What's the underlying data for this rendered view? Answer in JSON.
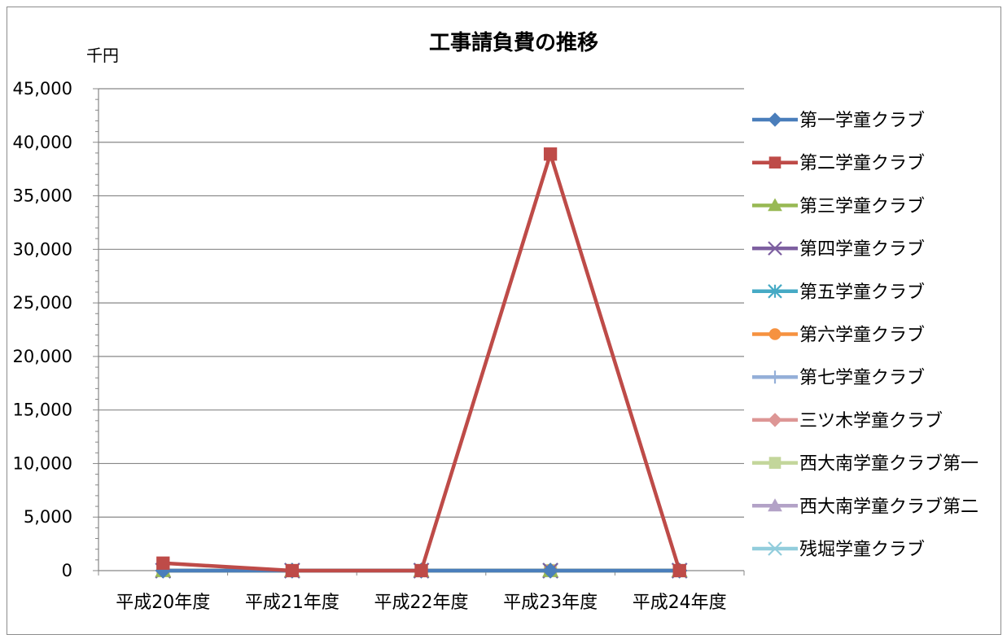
{
  "chart_data": {
    "type": "line",
    "title": "工事請負費の推移",
    "ylabel": "千円",
    "xlabel": "",
    "ylim": [
      0,
      45000
    ],
    "yticks": [
      0,
      5000,
      10000,
      15000,
      20000,
      25000,
      30000,
      35000,
      40000,
      45000
    ],
    "ytick_labels": [
      "0",
      "5,000",
      "10,000",
      "15,000",
      "20,000",
      "25,000",
      "30,000",
      "35,000",
      "40,000",
      "45,000"
    ],
    "categories": [
      "平成20年度",
      "平成21年度",
      "平成22年度",
      "平成23年度",
      "平成24年度"
    ],
    "grid": true,
    "legend_position": "right",
    "series": [
      {
        "name": "第一学童クラブ",
        "color": "#4a7ebb",
        "marker": "diamond",
        "values": [
          0,
          0,
          0,
          0,
          0
        ]
      },
      {
        "name": "第二学童クラブ",
        "color": "#be4b48",
        "marker": "square",
        "values": [
          700,
          0,
          0,
          38900,
          0
        ]
      },
      {
        "name": "第三学童クラブ",
        "color": "#98b954",
        "marker": "triangle",
        "values": [
          0,
          0,
          0,
          0,
          0
        ]
      },
      {
        "name": "第四学童クラブ",
        "color": "#7d5fa0",
        "marker": "x",
        "values": [
          0,
          0,
          0,
          0,
          0
        ]
      },
      {
        "name": "第五学童クラブ",
        "color": "#46aac5",
        "marker": "star",
        "values": [
          0,
          0,
          0,
          0,
          0
        ]
      },
      {
        "name": "第六学童クラブ",
        "color": "#f69240",
        "marker": "circle",
        "values": [
          0,
          0,
          0,
          0,
          0
        ]
      },
      {
        "name": "第七学童クラブ",
        "color": "#94afd8",
        "marker": "plus",
        "values": [
          0,
          0,
          0,
          0,
          0
        ]
      },
      {
        "name": "三ツ木学童クラブ",
        "color": "#dd9695",
        "marker": "diamond",
        "values": [
          0,
          0,
          0,
          0,
          0
        ]
      },
      {
        "name": "西大南学童クラブ第一",
        "color": "#c3d69b",
        "marker": "square",
        "values": [
          0,
          0,
          0,
          0,
          0
        ]
      },
      {
        "name": "西大南学童クラブ第二",
        "color": "#b3a2c7",
        "marker": "triangle",
        "values": [
          0,
          0,
          0,
          0,
          0
        ]
      },
      {
        "name": "残堀学童クラブ",
        "color": "#92cddc",
        "marker": "x",
        "values": [
          0,
          0,
          0,
          0,
          0
        ]
      }
    ]
  }
}
